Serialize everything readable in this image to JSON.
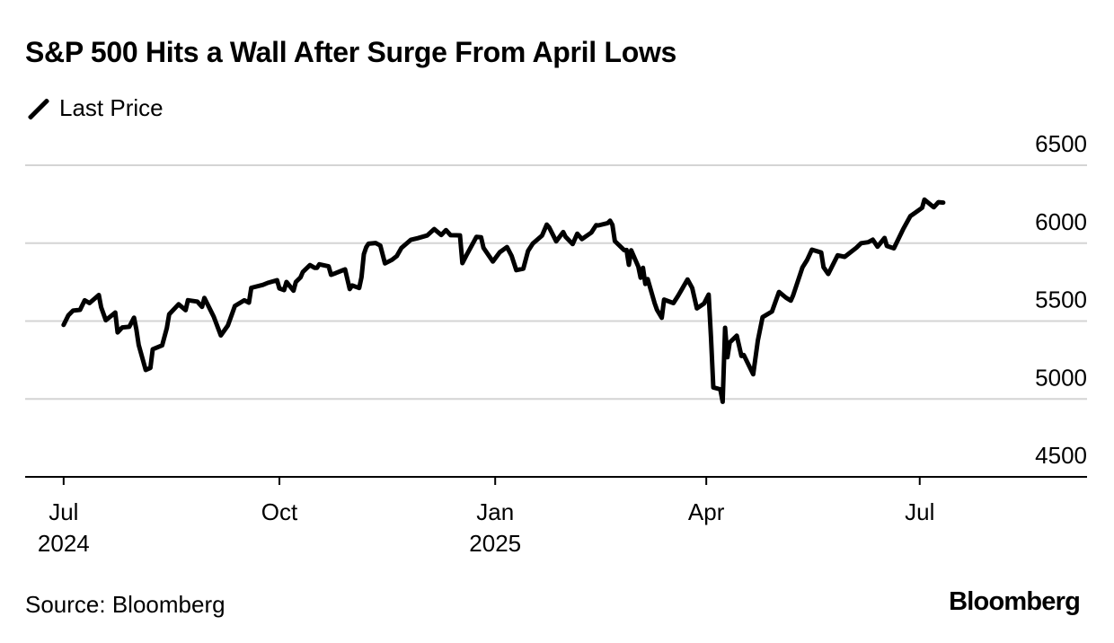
{
  "chart_data": {
    "type": "line",
    "title": "S&P 500 Hits a Wall After Surge From April Lows",
    "subtitle": "",
    "source": "Source: Bloomberg",
    "brand": "Bloomberg",
    "xlabel": "",
    "ylabel": "",
    "legend_position": "top-left",
    "grid": true,
    "ylim": [
      4500,
      6500
    ],
    "yticks": [
      {
        "value": 6500,
        "label": "6500"
      },
      {
        "value": 6000,
        "label": "6000"
      },
      {
        "value": 5500,
        "label": "5500"
      },
      {
        "value": 5000,
        "label": "5000"
      },
      {
        "value": 4500,
        "label": "4500"
      }
    ],
    "xlim": [
      "2024-06-28",
      "2025-08-31"
    ],
    "xticks": [
      {
        "date": "2024-07-01",
        "label": "Jul",
        "sublabel": "2024"
      },
      {
        "date": "2024-10-01",
        "label": "Oct",
        "sublabel": ""
      },
      {
        "date": "2025-01-01",
        "label": "Jan",
        "sublabel": "2025"
      },
      {
        "date": "2025-04-01",
        "label": "Apr",
        "sublabel": ""
      },
      {
        "date": "2025-07-01",
        "label": "Jul",
        "sublabel": ""
      }
    ],
    "series": [
      {
        "name": "Last Price",
        "color": "#000000",
        "points": [
          [
            "2024-07-01",
            5475
          ],
          [
            "2024-07-03",
            5537
          ],
          [
            "2024-07-05",
            5567
          ],
          [
            "2024-07-08",
            5572
          ],
          [
            "2024-07-10",
            5633
          ],
          [
            "2024-07-12",
            5615
          ],
          [
            "2024-07-16",
            5667
          ],
          [
            "2024-07-17",
            5588
          ],
          [
            "2024-07-19",
            5505
          ],
          [
            "2024-07-23",
            5555
          ],
          [
            "2024-07-24",
            5427
          ],
          [
            "2024-07-26",
            5459
          ],
          [
            "2024-07-29",
            5463
          ],
          [
            "2024-07-31",
            5522
          ],
          [
            "2024-08-01",
            5446
          ],
          [
            "2024-08-02",
            5346
          ],
          [
            "2024-08-05",
            5186
          ],
          [
            "2024-08-07",
            5199
          ],
          [
            "2024-08-08",
            5319
          ],
          [
            "2024-08-12",
            5344
          ],
          [
            "2024-08-14",
            5455
          ],
          [
            "2024-08-15",
            5543
          ],
          [
            "2024-08-19",
            5608
          ],
          [
            "2024-08-22",
            5570
          ],
          [
            "2024-08-23",
            5634
          ],
          [
            "2024-08-27",
            5625
          ],
          [
            "2024-08-29",
            5591
          ],
          [
            "2024-08-30",
            5648
          ],
          [
            "2024-09-03",
            5528
          ],
          [
            "2024-09-06",
            5408
          ],
          [
            "2024-09-09",
            5471
          ],
          [
            "2024-09-11",
            5554
          ],
          [
            "2024-09-12",
            5596
          ],
          [
            "2024-09-16",
            5633
          ],
          [
            "2024-09-18",
            5618
          ],
          [
            "2024-09-19",
            5713
          ],
          [
            "2024-09-24",
            5732
          ],
          [
            "2024-09-26",
            5745
          ],
          [
            "2024-09-30",
            5762
          ],
          [
            "2024-10-01",
            5709
          ],
          [
            "2024-10-03",
            5699
          ],
          [
            "2024-10-04",
            5751
          ],
          [
            "2024-10-07",
            5695
          ],
          [
            "2024-10-08",
            5751
          ],
          [
            "2024-10-10",
            5780
          ],
          [
            "2024-10-11",
            5815
          ],
          [
            "2024-10-14",
            5859
          ],
          [
            "2024-10-16",
            5842
          ],
          [
            "2024-10-17",
            5841
          ],
          [
            "2024-10-18",
            5864
          ],
          [
            "2024-10-22",
            5851
          ],
          [
            "2024-10-23",
            5797
          ],
          [
            "2024-10-25",
            5808
          ],
          [
            "2024-10-29",
            5832
          ],
          [
            "2024-10-31",
            5705
          ],
          [
            "2024-11-01",
            5728
          ],
          [
            "2024-11-04",
            5712
          ],
          [
            "2024-11-05",
            5782
          ],
          [
            "2024-11-06",
            5929
          ],
          [
            "2024-11-07",
            5973
          ],
          [
            "2024-11-08",
            5996
          ],
          [
            "2024-11-11",
            6001
          ],
          [
            "2024-11-13",
            5985
          ],
          [
            "2024-11-15",
            5870
          ],
          [
            "2024-11-18",
            5893
          ],
          [
            "2024-11-20",
            5917
          ],
          [
            "2024-11-22",
            5969
          ],
          [
            "2024-11-26",
            6021
          ],
          [
            "2024-11-29",
            6032
          ],
          [
            "2024-12-03",
            6049
          ],
          [
            "2024-12-06",
            6090
          ],
          [
            "2024-12-09",
            6052
          ],
          [
            "2024-12-11",
            6084
          ],
          [
            "2024-12-13",
            6051
          ],
          [
            "2024-12-17",
            6050
          ],
          [
            "2024-12-18",
            5872
          ],
          [
            "2024-12-20",
            5930
          ],
          [
            "2024-12-24",
            6040
          ],
          [
            "2024-12-26",
            6037
          ],
          [
            "2024-12-27",
            5970
          ],
          [
            "2024-12-31",
            5882
          ],
          [
            "2025-01-03",
            5942
          ],
          [
            "2025-01-06",
            5975
          ],
          [
            "2025-01-08",
            5918
          ],
          [
            "2025-01-10",
            5827
          ],
          [
            "2025-01-13",
            5836
          ],
          [
            "2025-01-15",
            5950
          ],
          [
            "2025-01-17",
            5997
          ],
          [
            "2025-01-21",
            6049
          ],
          [
            "2025-01-23",
            6119
          ],
          [
            "2025-01-24",
            6101
          ],
          [
            "2025-01-27",
            6012
          ],
          [
            "2025-01-30",
            6071
          ],
          [
            "2025-01-31",
            6041
          ],
          [
            "2025-02-03",
            5994
          ],
          [
            "2025-02-05",
            6061
          ],
          [
            "2025-02-07",
            6026
          ],
          [
            "2025-02-11",
            6068
          ],
          [
            "2025-02-13",
            6115
          ],
          [
            "2025-02-14",
            6114
          ],
          [
            "2025-02-18",
            6129
          ],
          [
            "2025-02-19",
            6144
          ],
          [
            "2025-02-20",
            6117
          ],
          [
            "2025-02-21",
            6013
          ],
          [
            "2025-02-25",
            5955
          ],
          [
            "2025-02-26",
            5956
          ],
          [
            "2025-02-27",
            5861
          ],
          [
            "2025-02-28",
            5954
          ],
          [
            "2025-03-03",
            5849
          ],
          [
            "2025-03-04",
            5778
          ],
          [
            "2025-03-05",
            5842
          ],
          [
            "2025-03-06",
            5738
          ],
          [
            "2025-03-07",
            5770
          ],
          [
            "2025-03-10",
            5614
          ],
          [
            "2025-03-11",
            5572
          ],
          [
            "2025-03-13",
            5521
          ],
          [
            "2025-03-14",
            5638
          ],
          [
            "2025-03-18",
            5615
          ],
          [
            "2025-03-20",
            5662
          ],
          [
            "2025-03-24",
            5767
          ],
          [
            "2025-03-26",
            5712
          ],
          [
            "2025-03-28",
            5581
          ],
          [
            "2025-03-31",
            5612
          ],
          [
            "2025-04-02",
            5670
          ],
          [
            "2025-04-03",
            5396
          ],
          [
            "2025-04-04",
            5074
          ],
          [
            "2025-04-07",
            5062
          ],
          [
            "2025-04-08",
            4982
          ],
          [
            "2025-04-09",
            5457
          ],
          [
            "2025-04-10",
            5268
          ],
          [
            "2025-04-11",
            5363
          ],
          [
            "2025-04-14",
            5406
          ],
          [
            "2025-04-16",
            5276
          ],
          [
            "2025-04-17",
            5282
          ],
          [
            "2025-04-21",
            5158
          ],
          [
            "2025-04-23",
            5376
          ],
          [
            "2025-04-25",
            5525
          ],
          [
            "2025-04-29",
            5561
          ],
          [
            "2025-05-02",
            5687
          ],
          [
            "2025-05-05",
            5650
          ],
          [
            "2025-05-07",
            5631
          ],
          [
            "2025-05-08",
            5664
          ],
          [
            "2025-05-12",
            5844
          ],
          [
            "2025-05-14",
            5892
          ],
          [
            "2025-05-16",
            5958
          ],
          [
            "2025-05-20",
            5940
          ],
          [
            "2025-05-21",
            5845
          ],
          [
            "2025-05-23",
            5802
          ],
          [
            "2025-05-27",
            5922
          ],
          [
            "2025-05-30",
            5912
          ],
          [
            "2025-06-04",
            5971
          ],
          [
            "2025-06-06",
            6000
          ],
          [
            "2025-06-09",
            6006
          ],
          [
            "2025-06-11",
            6022
          ],
          [
            "2025-06-13",
            5977
          ],
          [
            "2025-06-16",
            6033
          ],
          [
            "2025-06-17",
            5982
          ],
          [
            "2025-06-20",
            5967
          ],
          [
            "2025-06-24",
            6092
          ],
          [
            "2025-06-27",
            6173
          ],
          [
            "2025-06-30",
            6205
          ],
          [
            "2025-07-02",
            6227
          ],
          [
            "2025-07-03",
            6279
          ],
          [
            "2025-07-07",
            6230
          ],
          [
            "2025-07-09",
            6263
          ],
          [
            "2025-07-11",
            6260
          ]
        ]
      }
    ]
  }
}
